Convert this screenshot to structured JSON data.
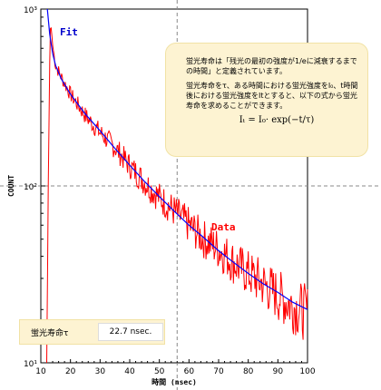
{
  "chart_data": {
    "type": "line",
    "xlabel": "時間 (nsec)",
    "ylabel": "COUNT",
    "xlim": [
      10,
      100
    ],
    "ylim": [
      10,
      1000
    ],
    "y_scale": "log",
    "x_ticks": [
      10,
      20,
      30,
      40,
      50,
      60,
      70,
      80,
      90,
      100
    ],
    "y_ticks": [
      10,
      100,
      1000
    ],
    "y_tick_labels": [
      "10¹",
      "10²",
      "10³"
    ],
    "grid": false,
    "crosshair": {
      "x": 56,
      "y": 100
    },
    "series": [
      {
        "name": "Data",
        "color": "#ff0000",
        "x": [
          12.0,
          12.5,
          13.0,
          13.3,
          13.6,
          14.0,
          15,
          17,
          20,
          25,
          30,
          35,
          40,
          45,
          50,
          55,
          60,
          65,
          70,
          75,
          80,
          85,
          90,
          95,
          100
        ],
        "y": [
          10,
          100,
          500,
          850,
          750,
          620,
          480,
          410,
          330,
          250,
          200,
          165,
          130,
          105,
          86,
          72,
          60,
          50,
          44,
          37,
          32,
          28,
          24,
          21,
          19
        ]
      },
      {
        "name": "Fit",
        "color": "#0000ff",
        "x": [
          12.2,
          13,
          14,
          15,
          17,
          20,
          25,
          30,
          35,
          40,
          45,
          50,
          55,
          60,
          65,
          70,
          75,
          80,
          85,
          90,
          95,
          100
        ],
        "y": [
          1000,
          720,
          560,
          480,
          400,
          330,
          255,
          205,
          163,
          131,
          106,
          87,
          72,
          60,
          51,
          43,
          37,
          32,
          28,
          25,
          22,
          20
        ]
      }
    ]
  },
  "info_box": {
    "line1": "蛍光寿命は「残光の最初の強度が1/eに減衰するまでの時間」と定義されています。",
    "line2": "蛍光寿命をτ、ある時間における蛍光強度をI₀、t時間後における蛍光強度をItとすると、以下の式から蛍光寿命を求めることができます。",
    "formula": "Iₜ = I₀· exp(−t/τ)"
  },
  "result": {
    "label": "蛍光寿命τ",
    "value": "22.7 nsec."
  }
}
